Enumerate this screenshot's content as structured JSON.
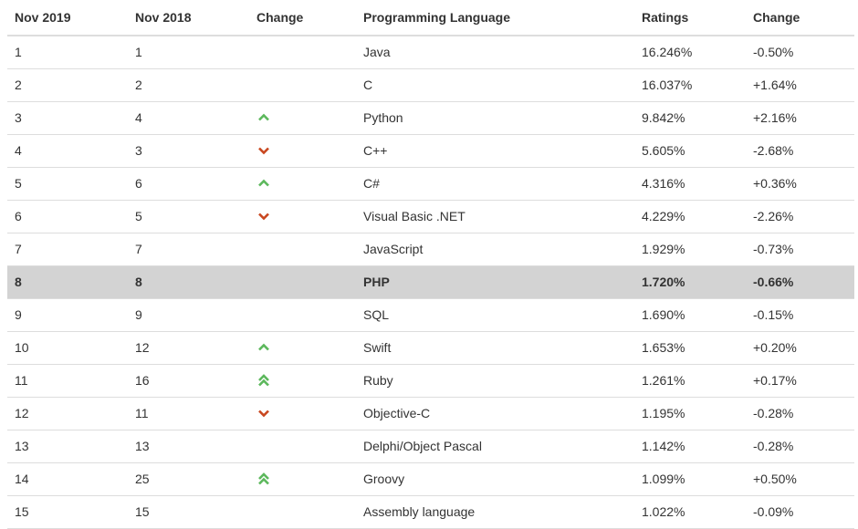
{
  "table": {
    "headers": [
      "Nov 2019",
      "Nov 2018",
      "Change",
      "Programming Language",
      "Ratings",
      "Change"
    ],
    "rows": [
      {
        "nov2019": "1",
        "nov2018": "1",
        "trend": "none",
        "language": "Java",
        "rating": "16.246%",
        "change": "-0.50%"
      },
      {
        "nov2019": "2",
        "nov2018": "2",
        "trend": "none",
        "language": "C",
        "rating": "16.037%",
        "change": "+1.64%"
      },
      {
        "nov2019": "3",
        "nov2018": "4",
        "trend": "up",
        "language": "Python",
        "rating": "9.842%",
        "change": "+2.16%"
      },
      {
        "nov2019": "4",
        "nov2018": "3",
        "trend": "down",
        "language": "C++",
        "rating": "5.605%",
        "change": "-2.68%"
      },
      {
        "nov2019": "5",
        "nov2018": "6",
        "trend": "up",
        "language": "C#",
        "rating": "4.316%",
        "change": "+0.36%"
      },
      {
        "nov2019": "6",
        "nov2018": "5",
        "trend": "down",
        "language": "Visual Basic .NET",
        "rating": "4.229%",
        "change": "-2.26%"
      },
      {
        "nov2019": "7",
        "nov2018": "7",
        "trend": "none",
        "language": "JavaScript",
        "rating": "1.929%",
        "change": "-0.73%"
      },
      {
        "nov2019": "8",
        "nov2018": "8",
        "trend": "none",
        "language": "PHP",
        "rating": "1.720%",
        "change": "-0.66%",
        "highlighted": true
      },
      {
        "nov2019": "9",
        "nov2018": "9",
        "trend": "none",
        "language": "SQL",
        "rating": "1.690%",
        "change": "-0.15%"
      },
      {
        "nov2019": "10",
        "nov2018": "12",
        "trend": "up",
        "language": "Swift",
        "rating": "1.653%",
        "change": "+0.20%"
      },
      {
        "nov2019": "11",
        "nov2018": "16",
        "trend": "double-up",
        "language": "Ruby",
        "rating": "1.261%",
        "change": "+0.17%"
      },
      {
        "nov2019": "12",
        "nov2018": "11",
        "trend": "down",
        "language": "Objective-C",
        "rating": "1.195%",
        "change": "-0.28%"
      },
      {
        "nov2019": "13",
        "nov2018": "13",
        "trend": "none",
        "language": "Delphi/Object Pascal",
        "rating": "1.142%",
        "change": "-0.28%"
      },
      {
        "nov2019": "14",
        "nov2018": "25",
        "trend": "double-up",
        "language": "Groovy",
        "rating": "1.099%",
        "change": "+0.50%"
      },
      {
        "nov2019": "15",
        "nov2018": "15",
        "trend": "none",
        "language": "Assembly language",
        "rating": "1.022%",
        "change": "-0.09%"
      }
    ]
  },
  "colors": {
    "up": "#5cb85c",
    "down": "#c9471f",
    "highlight_row": "#d3d3d3",
    "border": "#dddddd",
    "text": "#333333"
  },
  "icons": {
    "up": "chevron-up-icon",
    "down": "chevron-down-icon",
    "double-up": "double-chevron-up-icon"
  }
}
